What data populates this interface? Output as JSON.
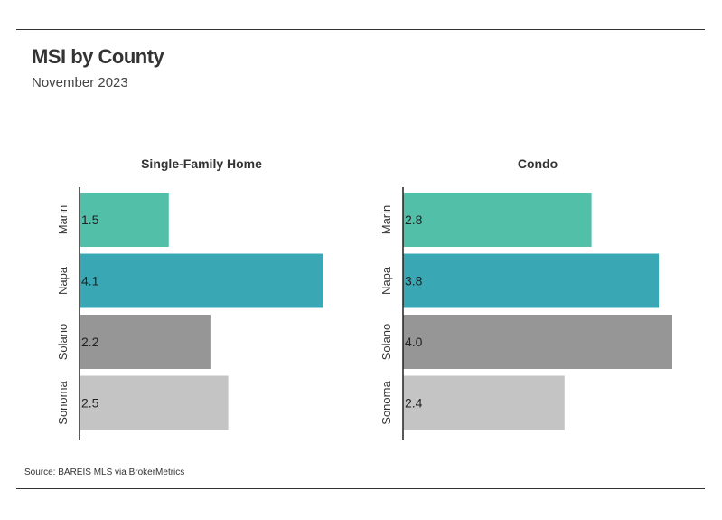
{
  "header": {
    "title": "MSI by County",
    "subtitle": "November 2023"
  },
  "footer": {
    "source": "Source:  BAREIS MLS via BrokerMetrics"
  },
  "colors": {
    "Marin": "#52bfa9",
    "Napa": "#3aa8b4",
    "Solano": "#969696",
    "Sonoma": "#c4c4c4"
  },
  "chart_data": [
    {
      "type": "bar",
      "orientation": "horizontal",
      "title": "Single-Family Home",
      "categories": [
        "Marin",
        "Napa",
        "Solano",
        "Sonoma"
      ],
      "values": [
        1.5,
        4.1,
        2.2,
        2.5
      ],
      "value_labels": [
        "1.5",
        "4.1",
        "2.2",
        "2.5"
      ],
      "xlim": [
        0,
        4.1
      ],
      "grid": false,
      "legend": "none"
    },
    {
      "type": "bar",
      "orientation": "horizontal",
      "title": "Condo",
      "categories": [
        "Marin",
        "Napa",
        "Solano",
        "Sonoma"
      ],
      "values": [
        2.8,
        3.8,
        4.0,
        2.4
      ],
      "value_labels": [
        "2.8",
        "3.8",
        "4.0",
        "2.4"
      ],
      "xlim": [
        0,
        4.0
      ],
      "grid": false,
      "legend": "none"
    }
  ]
}
